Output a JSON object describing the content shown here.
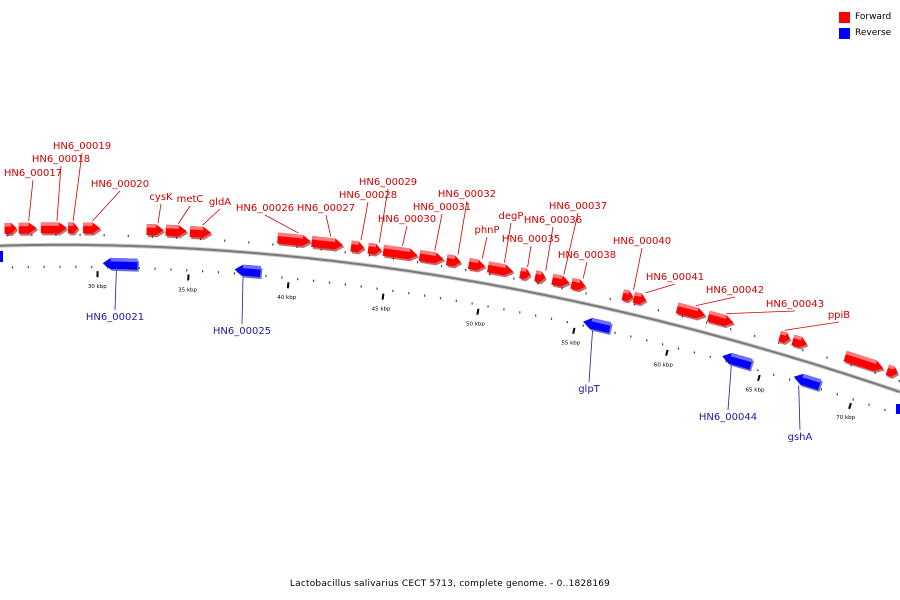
{
  "legend": [
    {
      "label": "Forward",
      "color": "#ff0000"
    },
    {
      "label": "Reverse",
      "color": "#0000ff"
    }
  ],
  "caption": "Lactobacillus salivarius CECT 5713, complete genome. - 0..1828169",
  "colors": {
    "forward": "#ff0000",
    "forward_light": "#ff7a7a",
    "reverse": "#0000ff",
    "reverse_light": "#6f6fff",
    "forward_label": "#d00000",
    "reverse_label": "#1a1aa6",
    "backbone": "#7a7a7a"
  },
  "axis_unit": "kbp",
  "ticks": [
    {
      "label": "30 kbp"
    },
    {
      "label": "35 kbp"
    },
    {
      "label": "40 kbp"
    },
    {
      "label": "45 kbp"
    },
    {
      "label": "50 kbp"
    },
    {
      "label": "55 kbp"
    },
    {
      "label": "60 kbp"
    },
    {
      "label": "65 kbp"
    },
    {
      "label": "70 kbp"
    }
  ],
  "forward_features": [
    {
      "name": "HN6_00017"
    },
    {
      "name": "HN6_00018"
    },
    {
      "name": "HN6_00019"
    },
    {
      "name": "HN6_00020"
    },
    {
      "name": "cysK"
    },
    {
      "name": "metC"
    },
    {
      "name": "gldA"
    },
    {
      "name": "HN6_00026"
    },
    {
      "name": "HN6_00027"
    },
    {
      "name": "HN6_00028"
    },
    {
      "name": "HN6_00029"
    },
    {
      "name": "HN6_00030"
    },
    {
      "name": "HN6_00031"
    },
    {
      "name": "HN6_00032"
    },
    {
      "name": "phnP"
    },
    {
      "name": "degP"
    },
    {
      "name": "HN6_00035"
    },
    {
      "name": "HN6_00036"
    },
    {
      "name": "HN6_00037"
    },
    {
      "name": "HN6_00038"
    },
    {
      "name": "HN6_00040"
    },
    {
      "name": "HN6_00041"
    },
    {
      "name": "HN6_00042"
    },
    {
      "name": "HN6_00043"
    },
    {
      "name": "ppiB"
    }
  ],
  "reverse_features": [
    {
      "name": "HN6_00021"
    },
    {
      "name": "HN6_00025"
    },
    {
      "name": "glpT"
    },
    {
      "name": "HN6_00044"
    },
    {
      "name": "gshA"
    }
  ]
}
